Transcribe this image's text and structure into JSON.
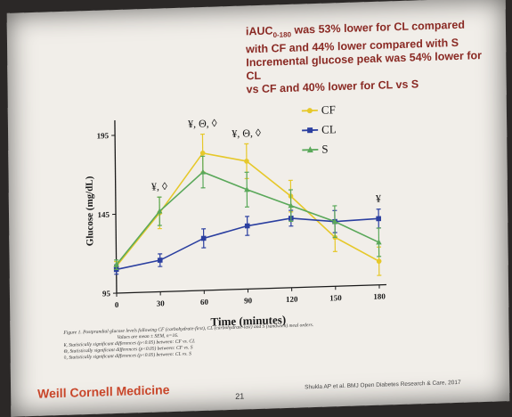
{
  "headline": {
    "line1_prefix": "iAUC",
    "line1_sub": "0-180",
    "line1_rest": " was 53% lower for CL compared",
    "line2": "with CF and 44% lower compared with S",
    "line3": "Incremental glucose peak was 54% lower for CL",
    "line4": "vs CF and 40% lower for CL vs S"
  },
  "chart_data": {
    "type": "line",
    "xlabel": "Time (minutes)",
    "ylabel": "Glucose (mg/dL)",
    "x": [
      0,
      30,
      60,
      90,
      120,
      150,
      180
    ],
    "xticks": [
      "0",
      "30",
      "60",
      "90",
      "120",
      "150",
      "180"
    ],
    "yticks": [
      "95",
      "145",
      "195"
    ],
    "xlim": [
      0,
      180
    ],
    "ylim": [
      95,
      200
    ],
    "legend_position": "top-right",
    "series": [
      {
        "name": "CF",
        "color": "#e6c82a",
        "marker": "circle",
        "values": [
          112,
          145,
          182,
          176,
          153,
          126,
          110
        ],
        "err": [
          3,
          10,
          12,
          11,
          10,
          9,
          9
        ]
      },
      {
        "name": "CL",
        "color": "#2b3fa0",
        "marker": "square",
        "values": [
          110,
          115,
          128,
          135,
          139,
          136,
          137
        ],
        "err": [
          3,
          4,
          6,
          6,
          5,
          7,
          6
        ]
      },
      {
        "name": "S",
        "color": "#5aa85a",
        "marker": "triangle",
        "values": [
          113,
          146,
          170,
          158,
          147,
          136,
          122
        ],
        "err": [
          3,
          9,
          10,
          11,
          10,
          10,
          9
        ]
      }
    ],
    "annotations": [
      {
        "x": 30,
        "text": "¥, ◊"
      },
      {
        "x": 60,
        "text": "¥, Θ, ◊"
      },
      {
        "x": 90,
        "text": "¥, Θ, ◊"
      },
      {
        "x": 180,
        "text": "¥"
      }
    ]
  },
  "caption": {
    "line1": "Figure 1. Postprandial glucose levels following CF (carbohydrate-first), CL (carbohydrate-last) and S (sandwich) meal orders.",
    "line2": "Values are mean ± SEM, n=16.",
    "line3": "¥, Statistically significant differences (p<0.05) between: CF vs. CL",
    "line4": "Θ, Statistically significant differences (p<0.05) between: CF vs. S",
    "line5": "◊, Statistically significant differences (p<0.05) between: CL vs. S"
  },
  "footer": {
    "logo": "Weill Cornell Medicine",
    "page_number": "21",
    "citation": "Shukla AP et al. BMJ Open Diabetes Research & Care, 2017"
  }
}
